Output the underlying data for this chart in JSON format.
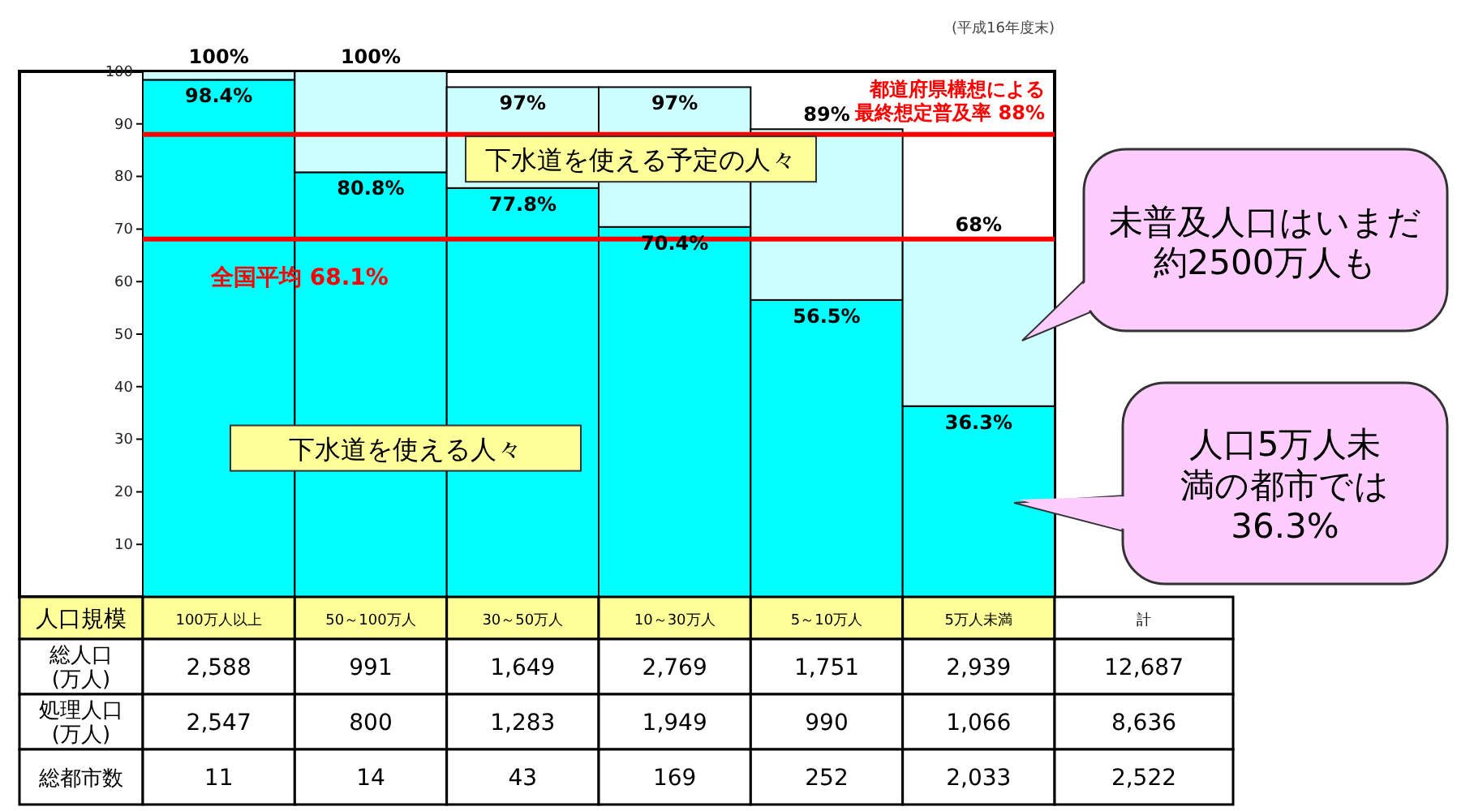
{
  "chart_data": [
    {
      "type": "bar",
      "stacked": true,
      "categories": [
        null,
        null,
        null,
        null,
        null,
        null
      ],
      "series": [
        {
          "name": "下水道を使える人々",
          "color": "#00ffff",
          "values": [
            98.4,
            80.8,
            77.8,
            70.4,
            56.5,
            36.3
          ],
          "value_labels": [
            "98.4%",
            "80.8%",
            "77.8%",
            "70.4%",
            "56.5%",
            "36.3%"
          ]
        },
        {
          "name": "下水道を使える予定の人々",
          "color": "#ccffff",
          "values": [
            1.6,
            19.2,
            19.2,
            26.6,
            32.5,
            31.7
          ]
        }
      ],
      "totals": [
        "100%",
        "100%",
        "97%",
        "97%",
        "89%",
        "68%"
      ],
      "ylim": [
        0,
        100
      ],
      "yticks": [
        10,
        20,
        30,
        40,
        50,
        60,
        70,
        80,
        90,
        100
      ],
      "grid": false,
      "legend": false,
      "tick_labels": "y",
      "ref_lines": [
        {
          "axis": "y",
          "value": 88,
          "label": "都道府県構想による最終想定普及率 88%",
          "color": "#ff0000"
        },
        {
          "axis": "y",
          "value": 68.1,
          "label": "全国平均 68.1%",
          "color": "#ff0000"
        }
      ],
      "annotations": [
        "(平成16年度末)",
        "未普及人口はいまだ約2500万人も",
        "人口5万人未満の都市では36.3%"
      ]
    },
    {
      "type": "other",
      "xlabel": "人口規模",
      "data_labels": true,
      "categories": [
        "100万人以上",
        "50～100万人",
        "30～50万人",
        "10～30万人",
        "5～10万人",
        "5万人未満",
        "計"
      ],
      "series": [
        {
          "name": "総人口(万人)",
          "values": [
            2588,
            991,
            1649,
            2769,
            1751,
            2939,
            12687
          ],
          "value_labels": [
            "2,588",
            "991",
            "1,649",
            "2,769",
            "1,751",
            "2,939",
            "12,687"
          ]
        },
        {
          "name": "処理人口(万人)",
          "values": [
            2547,
            800,
            1283,
            1949,
            990,
            1066,
            8636
          ],
          "value_labels": [
            "2,547",
            "800",
            "1,283",
            "1,949",
            "990",
            "1,066",
            "8,636"
          ]
        },
        {
          "name": "総都市数",
          "values": [
            11,
            14,
            43,
            169,
            252,
            2033,
            2522
          ],
          "value_labels": [
            "11",
            "14",
            "43",
            "169",
            "252",
            "2,033",
            "2,522"
          ]
        }
      ]
    }
  ]
}
